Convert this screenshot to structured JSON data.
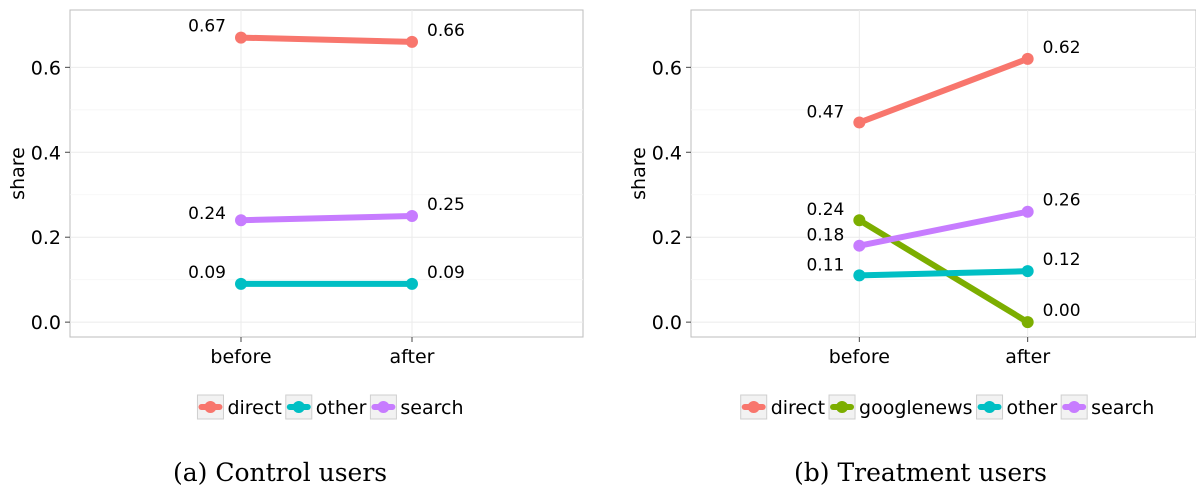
{
  "chart_data": [
    {
      "type": "line",
      "caption": "(a) Control users",
      "categories": [
        "before",
        "after"
      ],
      "ylabel": "share",
      "ylim": [
        -0.035,
        0.735
      ],
      "yticks": [
        "0.0",
        "0.2",
        "0.4",
        "0.6"
      ],
      "grid": true,
      "legend_position": "bottom",
      "series": [
        {
          "name": "direct",
          "color": "#F8766D",
          "values": [
            0.67,
            0.66
          ],
          "labels": [
            "0.67",
            "0.66"
          ]
        },
        {
          "name": "other",
          "color": "#00BFC4",
          "values": [
            0.09,
            0.09
          ],
          "labels": [
            "0.09",
            "0.09"
          ]
        },
        {
          "name": "search",
          "color": "#C77CFF",
          "values": [
            0.24,
            0.25
          ],
          "labels": [
            "0.24",
            "0.25"
          ]
        }
      ]
    },
    {
      "type": "line",
      "caption": "(b) Treatment users",
      "categories": [
        "before",
        "after"
      ],
      "ylabel": "share",
      "ylim": [
        -0.035,
        0.735
      ],
      "yticks": [
        "0.0",
        "0.2",
        "0.4",
        "0.6"
      ],
      "grid": true,
      "legend_position": "bottom",
      "series": [
        {
          "name": "direct",
          "color": "#F8766D",
          "values": [
            0.47,
            0.62
          ],
          "labels": [
            "0.47",
            "0.62"
          ]
        },
        {
          "name": "googlenews",
          "color": "#7CAE00",
          "values": [
            0.24,
            0.0
          ],
          "labels": [
            "0.24",
            "0.00"
          ]
        },
        {
          "name": "other",
          "color": "#00BFC4",
          "values": [
            0.11,
            0.12
          ],
          "labels": [
            "0.11",
            "0.12"
          ]
        },
        {
          "name": "search",
          "color": "#C77CFF",
          "values": [
            0.18,
            0.26
          ],
          "labels": [
            "0.18",
            "0.26"
          ]
        }
      ]
    }
  ]
}
